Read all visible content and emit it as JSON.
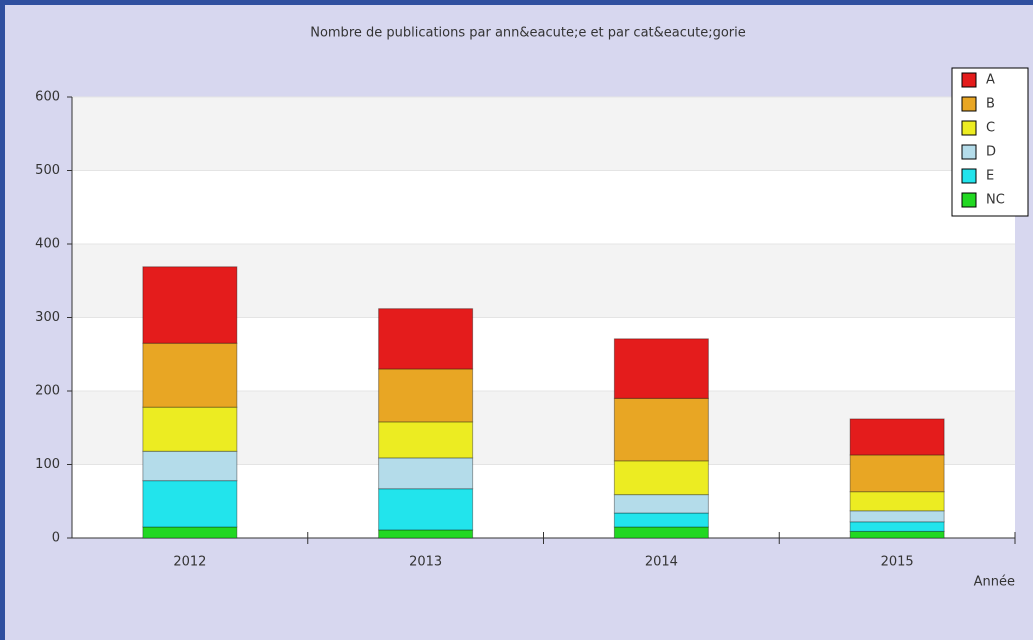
{
  "chart_data": {
    "type": "bar",
    "stacked": true,
    "title": "Nombre de publications par ann&eacute;e et par cat&eacute;gorie",
    "x_label": "Année",
    "categories": [
      "2012",
      "2013",
      "2014",
      "2015"
    ],
    "series": [
      {
        "name": "NC",
        "color": "#22d822",
        "values": [
          15,
          11,
          15,
          9
        ]
      },
      {
        "name": "E",
        "color": "#22e4ec",
        "values": [
          63,
          56,
          19,
          13
        ]
      },
      {
        "name": "D",
        "color": "#b4dcea",
        "values": [
          40,
          42,
          25,
          15
        ]
      },
      {
        "name": "C",
        "color": "#ecec22",
        "values": [
          60,
          49,
          46,
          26
        ]
      },
      {
        "name": "B",
        "color": "#e8a624",
        "values": [
          87,
          72,
          85,
          50
        ]
      },
      {
        "name": "A",
        "color": "#e41c1c",
        "values": [
          104,
          82,
          81,
          49
        ]
      }
    ],
    "ylim": [
      0,
      600
    ],
    "yticks": [
      0,
      100,
      200,
      300,
      400,
      500,
      600
    ],
    "grid": true,
    "legend": "top-right"
  }
}
